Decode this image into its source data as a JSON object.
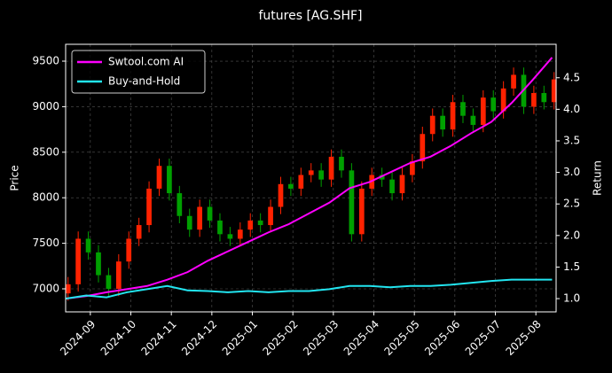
{
  "chart_data": {
    "type": "candlestick",
    "title": "futures [AG.SHF]",
    "ylabel": "Price",
    "y2label": "Return",
    "xlim": [
      0.39,
      12.5
    ],
    "xticks": [
      {
        "value": 1,
        "label": "2024-09"
      },
      {
        "value": 2,
        "label": "2024-10"
      },
      {
        "value": 3,
        "label": "2024-11"
      },
      {
        "value": 4,
        "label": "2024-12"
      },
      {
        "value": 5,
        "label": "2025-01"
      },
      {
        "value": 6,
        "label": "2025-02"
      },
      {
        "value": 7,
        "label": "2025-03"
      },
      {
        "value": 8,
        "label": "2025-04"
      },
      {
        "value": 9,
        "label": "2025-05"
      },
      {
        "value": 10,
        "label": "2025-06"
      },
      {
        "value": 11,
        "label": "2025-07"
      },
      {
        "value": 12,
        "label": "2025-08"
      }
    ],
    "ylim": [
      6747,
      9685
    ],
    "yticks": [
      7000,
      7500,
      8000,
      8500,
      9000,
      9500
    ],
    "y2lim": [
      0.79,
      5.03
    ],
    "y2ticks": [
      {
        "value": 1,
        "label": "1.0"
      },
      {
        "value": 1.5,
        "label": "1.5"
      },
      {
        "value": 2,
        "label": "2.0"
      },
      {
        "value": 2.5,
        "label": "2.5"
      },
      {
        "value": 3,
        "label": "3.0"
      },
      {
        "value": 3.5,
        "label": "3.5"
      },
      {
        "value": 4,
        "label": "4.0"
      },
      {
        "value": 4.5,
        "label": "4.5"
      }
    ],
    "grid": true,
    "legend": "upper left",
    "up_color": "#ff2200",
    "down_color": "#00a000",
    "candles": {
      "x": [
        0.45,
        0.7,
        0.95,
        1.2,
        1.45,
        1.7,
        1.95,
        2.2,
        2.45,
        2.7,
        2.95,
        3.2,
        3.45,
        3.7,
        3.95,
        4.2,
        4.45,
        4.7,
        4.95,
        5.2,
        5.45,
        5.7,
        5.95,
        6.2,
        6.45,
        6.7,
        6.95,
        7.2,
        7.45,
        7.7,
        7.95,
        8.2,
        8.45,
        8.7,
        8.95,
        9.2,
        9.45,
        9.7,
        9.95,
        10.2,
        10.45,
        10.7,
        10.95,
        11.2,
        11.45,
        11.7,
        11.95,
        12.2,
        12.45
      ],
      "open": [
        6950,
        7050,
        7550,
        7400,
        7150,
        7000,
        7300,
        7550,
        7700,
        8100,
        8350,
        8050,
        7800,
        7650,
        7900,
        7750,
        7600,
        7550,
        7650,
        7750,
        7700,
        7900,
        8150,
        8100,
        8250,
        8300,
        8200,
        8450,
        8300,
        7600,
        8100,
        8250,
        8200,
        8050,
        8250,
        8400,
        8700,
        8900,
        8750,
        9050,
        8900,
        8800,
        9100,
        8950,
        9200,
        9350,
        9000,
        9150,
        9050
      ],
      "high": [
        7130,
        7630,
        7630,
        7480,
        7230,
        7380,
        7630,
        7780,
        8180,
        8430,
        8430,
        8130,
        7880,
        7980,
        7980,
        7830,
        7680,
        7730,
        7830,
        7830,
        7980,
        8230,
        8230,
        8330,
        8380,
        8380,
        8530,
        8530,
        8380,
        8180,
        8330,
        8330,
        8280,
        8330,
        8480,
        8780,
        8980,
        8980,
        9130,
        9130,
        8980,
        9180,
        9180,
        9280,
        9430,
        9430,
        9230,
        9230,
        9380
      ],
      "low": [
        6870,
        6970,
        7320,
        7070,
        6920,
        6920,
        7220,
        7470,
        7620,
        8020,
        7970,
        7720,
        7570,
        7570,
        7670,
        7520,
        7470,
        7470,
        7570,
        7620,
        7620,
        7820,
        8020,
        8020,
        8170,
        8120,
        8120,
        8220,
        7520,
        7520,
        8020,
        8120,
        7970,
        7970,
        8170,
        8320,
        8620,
        8670,
        8670,
        8820,
        8720,
        8720,
        8870,
        8870,
        9120,
        8920,
        8920,
        8970,
        8970
      ],
      "close": [
        7050,
        7550,
        7400,
        7150,
        7000,
        7300,
        7550,
        7700,
        8100,
        8350,
        8050,
        7800,
        7650,
        7900,
        7750,
        7600,
        7550,
        7650,
        7750,
        7700,
        7900,
        8150,
        8100,
        8250,
        8300,
        8200,
        8450,
        8300,
        7600,
        8100,
        8250,
        8200,
        8050,
        8250,
        8400,
        8700,
        8900,
        8750,
        9050,
        8900,
        8800,
        9100,
        8950,
        9200,
        9350,
        9000,
        9150,
        9050,
        9300
      ]
    },
    "series": [
      {
        "name": "Swtool.com AI",
        "color": "#ff00ff",
        "axis": "y2",
        "x": [
          0.4,
          0.9,
          1.4,
          1.9,
          2.4,
          2.9,
          3.4,
          3.9,
          4.4,
          4.9,
          5.4,
          5.9,
          6.4,
          6.9,
          7.4,
          7.9,
          8.4,
          8.9,
          9.4,
          9.9,
          10.4,
          10.9,
          11.4,
          11.9,
          12.4
        ],
        "values": [
          1.0,
          1.04,
          1.1,
          1.15,
          1.2,
          1.3,
          1.42,
          1.6,
          1.75,
          1.9,
          2.05,
          2.18,
          2.35,
          2.52,
          2.75,
          2.85,
          3.0,
          3.15,
          3.25,
          3.42,
          3.62,
          3.8,
          4.1,
          4.45,
          4.82
        ]
      },
      {
        "name": "Buy-and-Hold",
        "color": "#22e5f0",
        "axis": "y2",
        "x": [
          0.4,
          0.9,
          1.4,
          1.9,
          2.4,
          2.9,
          3.4,
          3.9,
          4.4,
          4.9,
          5.4,
          5.9,
          6.4,
          6.9,
          7.4,
          7.9,
          8.4,
          8.9,
          9.4,
          9.9,
          10.4,
          10.9,
          11.4,
          11.9,
          12.4
        ],
        "values": [
          1.0,
          1.05,
          1.02,
          1.1,
          1.15,
          1.2,
          1.13,
          1.12,
          1.1,
          1.12,
          1.1,
          1.12,
          1.12,
          1.15,
          1.2,
          1.2,
          1.18,
          1.2,
          1.2,
          1.22,
          1.25,
          1.28,
          1.3,
          1.3,
          1.3
        ]
      }
    ]
  }
}
